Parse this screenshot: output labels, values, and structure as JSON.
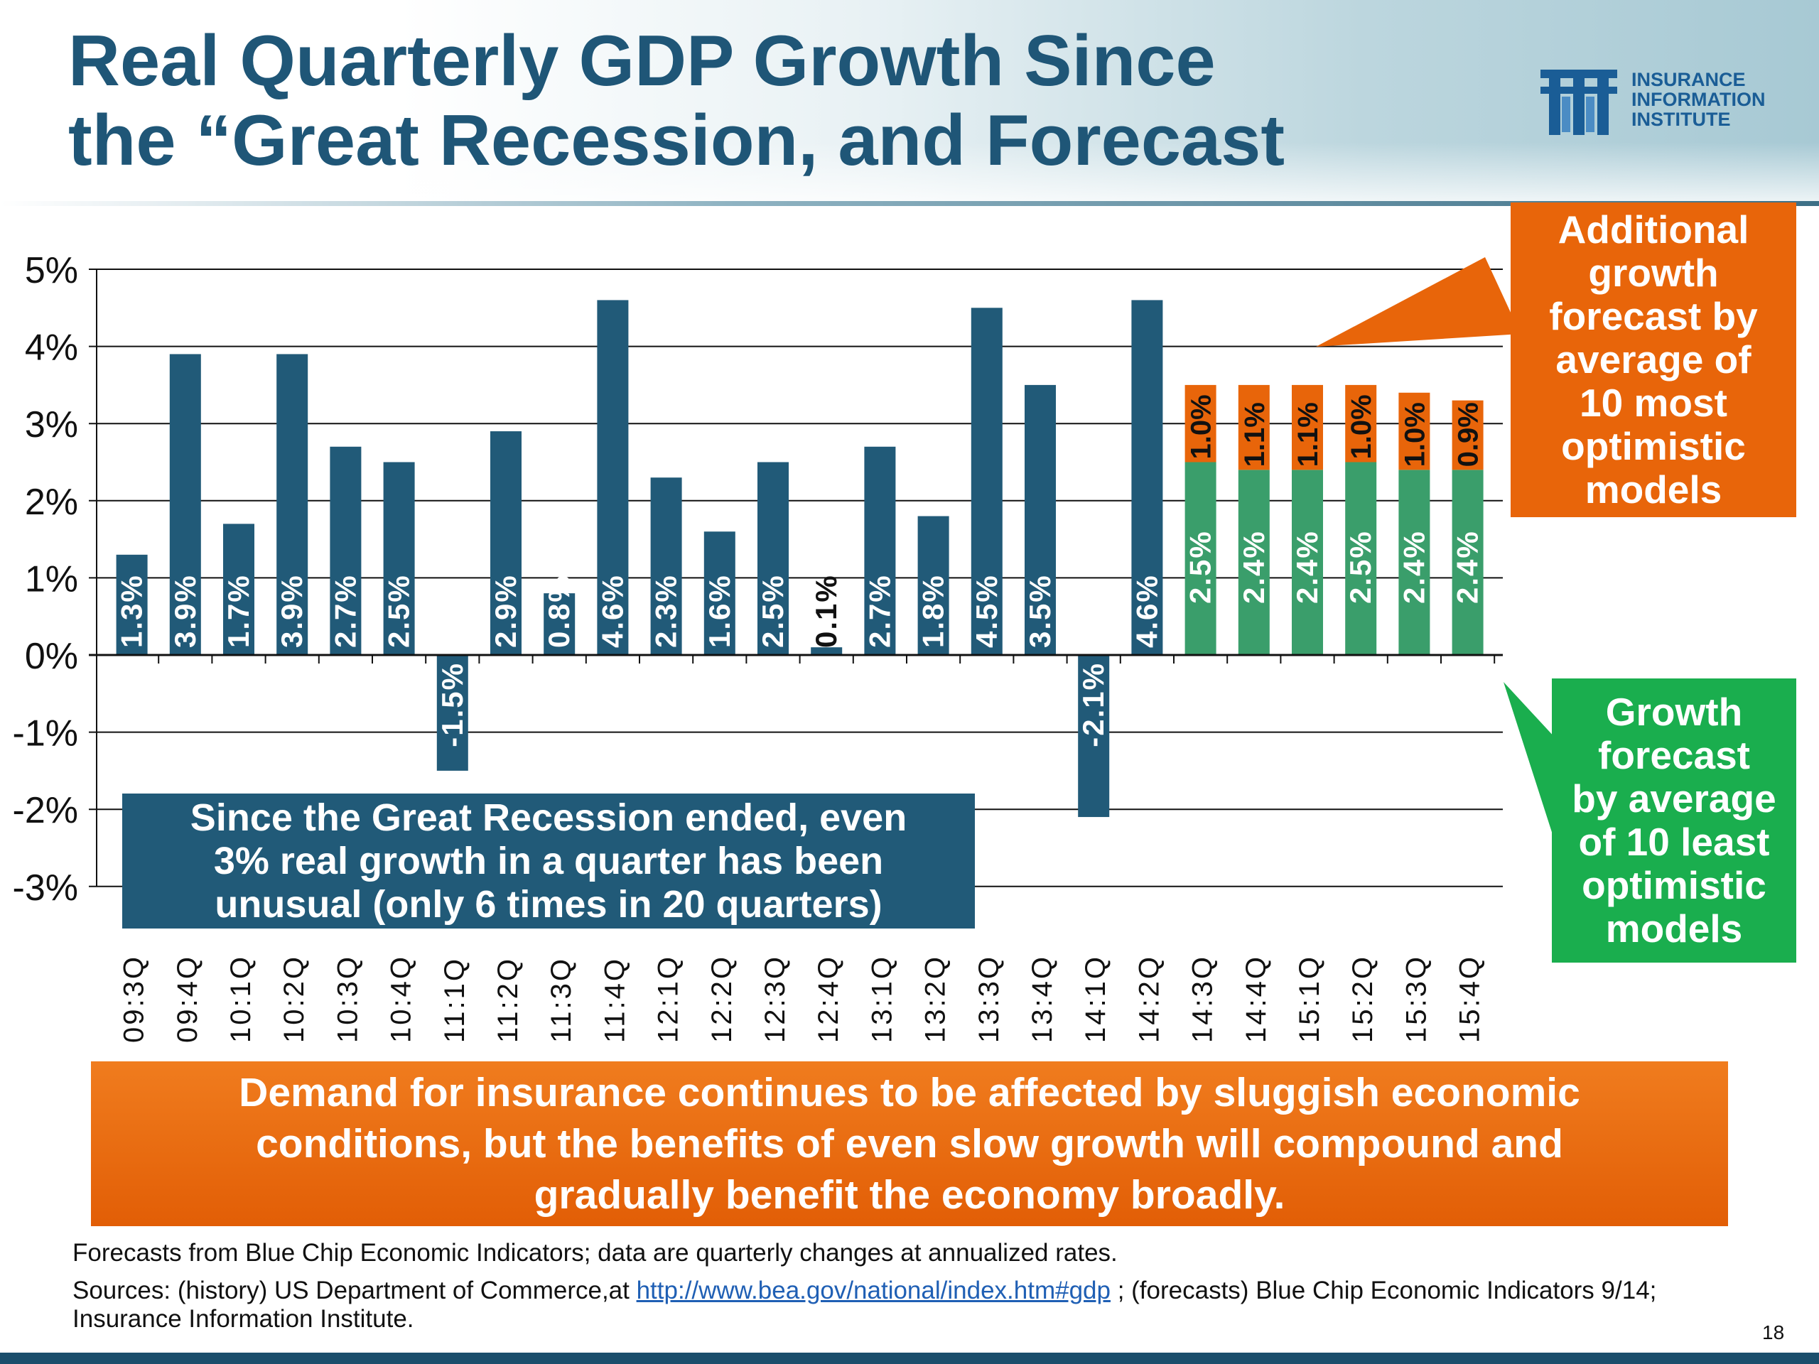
{
  "title": {
    "line1": "Real Quarterly GDP Growth Since",
    "line2": "the “Great Recession, and Forecast"
  },
  "logo": {
    "line1": "INSURANCE",
    "line2": "INFORMATION",
    "line3": "INSTITUTE",
    "color": "#1a5d96"
  },
  "callouts": {
    "optimistic": "Additional\ngrowth\nforecast by\naverage of\n10 most\noptimistic\nmodels",
    "least": "Growth\nforecast\nby average\nof 10 least\noptimistic\nmodels",
    "recession": "Since the Great Recession ended, even\n3% real growth in a quarter has been\nunusual (only 6 times in 20 quarters)"
  },
  "banner": "Demand for insurance continues to be affected by sluggish economic\nconditions, but the benefits of even slow growth will compound and\ngradually benefit the economy broadly.",
  "footnote": "Forecasts from Blue Chip Economic Indicators; data are quarterly changes at annualized rates.",
  "sources": {
    "prefix": "Sources: (history) US Department of Commerce,at ",
    "link": "http://www.bea.gov/national/index.htm#gdp",
    "suffix": " ; (forecasts) Blue Chip Economic Indicators 9/14; Insurance Information Institute."
  },
  "page_number": "18",
  "colors": {
    "history": "#215a78",
    "forecast_base": "#3a9e6b",
    "forecast_add": "#e8650a",
    "title": "#1f5677",
    "callout_orange": "#e8650a",
    "callout_green": "#1aae4e"
  },
  "chart_data": {
    "type": "bar",
    "stacked": true,
    "categories": [
      "09:3Q",
      "09:4Q",
      "10:1Q",
      "10:2Q",
      "10:3Q",
      "10:4Q",
      "11:1Q",
      "11:2Q",
      "11:3Q",
      "11:4Q",
      "12:1Q",
      "12:2Q",
      "12:3Q",
      "12:4Q",
      "13:1Q",
      "13:2Q",
      "13:3Q",
      "13:4Q",
      "14:1Q",
      "14:2Q",
      "14:3Q",
      "14:4Q",
      "15:1Q",
      "15:2Q",
      "15:3Q",
      "15:4Q"
    ],
    "y_tick_labels": [
      "5%",
      "4%",
      "3%",
      "2%",
      "1%",
      "0%",
      "-1%",
      "-2%",
      "-3%"
    ],
    "ylim": [
      -3,
      5
    ],
    "grid": true,
    "series": [
      {
        "values": [
          1.3,
          3.9,
          1.7,
          3.9,
          2.7,
          2.5,
          -1.5,
          2.9,
          0.8,
          4.6,
          2.3,
          1.6,
          2.5,
          0.1,
          2.7,
          1.8,
          4.5,
          3.5,
          -2.1,
          4.6,
          null,
          null,
          null,
          null,
          null,
          null
        ],
        "labels": [
          "1.3%",
          "3.9%",
          "1.7%",
          "3.9%",
          "2.7%",
          "2.5%",
          "-1.5%",
          "2.9%",
          "0.8%",
          "4.6%",
          "2.3%",
          "1.6%",
          "2.5%",
          "0.1%",
          "2.7%",
          "1.8%",
          "4.5%",
          "3.5%",
          "-2.1%",
          "4.6%",
          "",
          "",
          "",
          "",
          "",
          ""
        ]
      },
      {
        "values": [
          null,
          null,
          null,
          null,
          null,
          null,
          null,
          null,
          null,
          null,
          null,
          null,
          null,
          null,
          null,
          null,
          null,
          null,
          null,
          null,
          2.5,
          2.4,
          2.4,
          2.5,
          2.4,
          2.4
        ],
        "labels": [
          "",
          "",
          "",
          "",
          "",
          "",
          "",
          "",
          "",
          "",
          "",
          "",
          "",
          "",
          "",
          "",
          "",
          "",
          "",
          "",
          "2.5%",
          "2.4%",
          "2.4%",
          "2.5%",
          "2.4%",
          "2.4%"
        ]
      },
      {
        "values": [
          null,
          null,
          null,
          null,
          null,
          null,
          null,
          null,
          null,
          null,
          null,
          null,
          null,
          null,
          null,
          null,
          null,
          null,
          null,
          null,
          1.0,
          1.1,
          1.1,
          1.0,
          1.0,
          0.9
        ],
        "labels": [
          "",
          "",
          "",
          "",
          "",
          "",
          "",
          "",
          "",
          "",
          "",
          "",
          "",
          "",
          "",
          "",
          "",
          "",
          "",
          "",
          "1.0%",
          "1.1%",
          "1.1%",
          "1.0%",
          "1.0%",
          "0.9%"
        ]
      }
    ]
  }
}
